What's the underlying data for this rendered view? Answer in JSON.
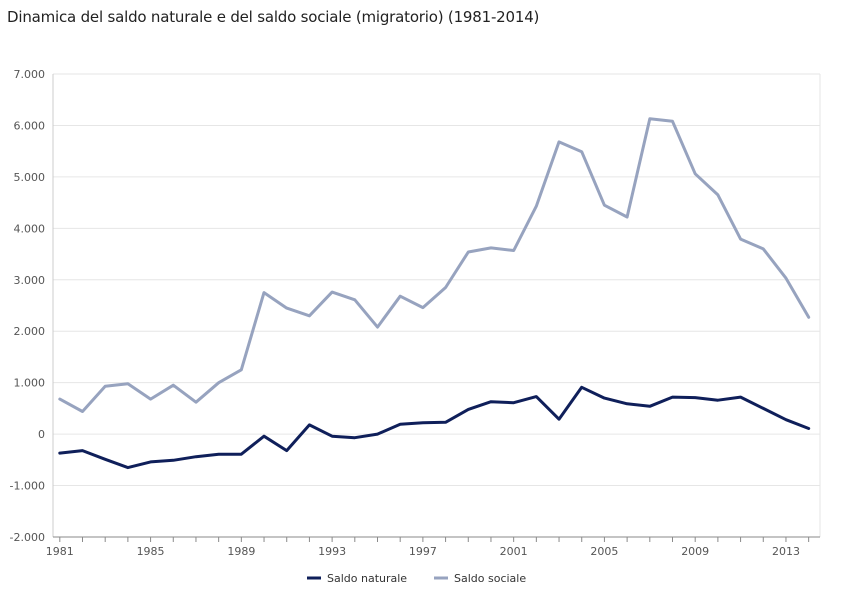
{
  "chart_data": {
    "type": "line",
    "title": "Dinamica del saldo naturale e del saldo sociale (migratorio) (1981-2014)",
    "xlabel": "",
    "ylabel": "",
    "x": [
      1981,
      1982,
      1983,
      1984,
      1985,
      1986,
      1987,
      1988,
      1989,
      1990,
      1991,
      1992,
      1993,
      1994,
      1995,
      1996,
      1997,
      1998,
      1999,
      2000,
      2001,
      2002,
      2003,
      2004,
      2005,
      2006,
      2007,
      2008,
      2009,
      2010,
      2011,
      2012,
      2013,
      2014
    ],
    "x_tick_labels": [
      "1981",
      "1985",
      "1989",
      "1993",
      "1997",
      "2001",
      "2005",
      "2009",
      "2013"
    ],
    "x_tick_values": [
      1981,
      1985,
      1989,
      1993,
      1997,
      2001,
      2005,
      2009,
      2013
    ],
    "ylim": [
      -2000,
      7000
    ],
    "y_tick_values": [
      7000,
      6000,
      5000,
      4000,
      3000,
      2000,
      1000,
      0,
      -1000,
      -2000
    ],
    "y_tick_labels": [
      "7.000",
      "6.000",
      "5.000",
      "4.000",
      "3.000",
      "2.000",
      "1.000",
      "0",
      "-1.000",
      "-2.000"
    ],
    "grid": true,
    "legend_position": "bottom-center",
    "series": [
      {
        "name": "Saldo naturale",
        "color": "#0f1f5a",
        "values": [
          -370,
          -320,
          -490,
          -650,
          -540,
          -510,
          -440,
          -390,
          -390,
          -40,
          -320,
          180,
          -40,
          -70,
          0,
          190,
          220,
          230,
          480,
          630,
          610,
          730,
          290,
          910,
          700,
          590,
          540,
          720,
          710,
          660,
          720,
          500,
          280,
          110
        ]
      },
      {
        "name": "Saldo sociale",
        "color": "#97a3bf",
        "values": [
          680,
          440,
          930,
          980,
          680,
          950,
          620,
          1000,
          1250,
          2750,
          2450,
          2300,
          2760,
          2610,
          2080,
          2680,
          2460,
          2850,
          3540,
          3620,
          3570,
          4430,
          5680,
          5490,
          4450,
          4220,
          6130,
          6080,
          5060,
          4650,
          3790,
          3600,
          3030,
          2270
        ]
      }
    ]
  }
}
